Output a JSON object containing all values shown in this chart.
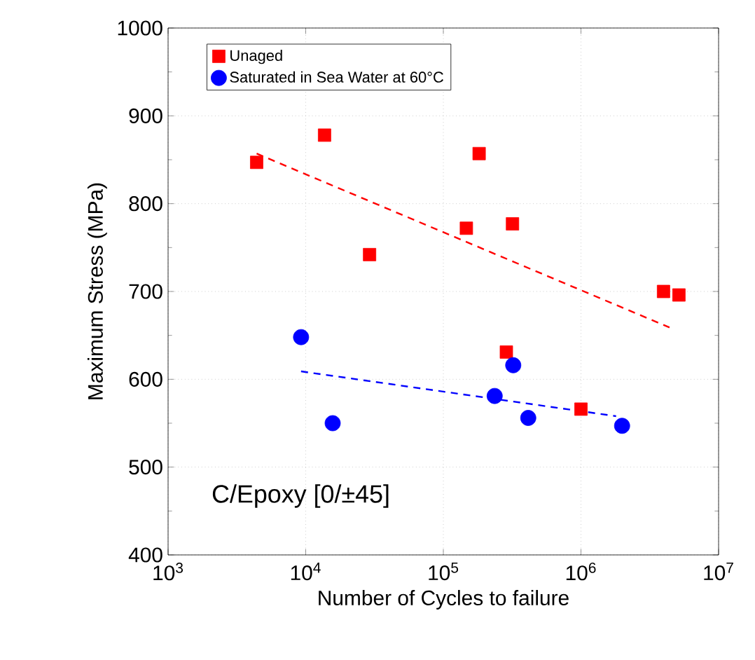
{
  "chart_data": {
    "type": "scatter",
    "xlabel": "Number of Cycles to failure",
    "ylabel": "Maximum Stress (MPa)",
    "log": "x",
    "xlim": [
      1000,
      10000000
    ],
    "ylim": [
      400,
      1000
    ],
    "xticks": [
      {
        "value": 1000,
        "label": "10$^{3}$"
      },
      {
        "value": 10000,
        "label": "10$^{4}$"
      },
      {
        "value": 100000,
        "label": "10$^{5}$"
      },
      {
        "value": 1000000,
        "label": "10$^{6}$"
      },
      {
        "value": 10000000,
        "label": "10$^{7}$"
      }
    ],
    "yticks": [
      400,
      500,
      600,
      700,
      800,
      900,
      1000
    ],
    "grid": true,
    "legend": "top left",
    "annotations": [
      "C/Epoxy [0/±45]"
    ],
    "series": [
      {
        "name": "Unaged",
        "color": "#ff0000",
        "marker": "square",
        "x": [
          4400,
          13700,
          29100,
          147000,
          182000,
          318000,
          287000,
          1000000,
          3980000,
          5150000
        ],
        "values": [
          847,
          878,
          742,
          772,
          857,
          777,
          631,
          566,
          700,
          696
        ]
      },
      {
        "name": "Saturated in Sea Water at 60°C",
        "color": "#0000ff",
        "marker": "circle",
        "x": [
          9250,
          15700,
          236000,
          322000,
          414000,
          1990000
        ],
        "values": [
          648,
          550,
          581,
          616,
          556,
          547
        ]
      },
      {
        "type": "line",
        "color": "#ff0000",
        "marker": "none",
        "line_style": "dashed",
        "x": [
          4400,
          4400000
        ],
        "values": [
          857,
          659
        ]
      },
      {
        "type": "line",
        "color": "#0000ff",
        "marker": "none",
        "line_style": "dashed",
        "x": [
          9250,
          1800000
        ],
        "values": [
          609,
          558
        ]
      }
    ]
  }
}
